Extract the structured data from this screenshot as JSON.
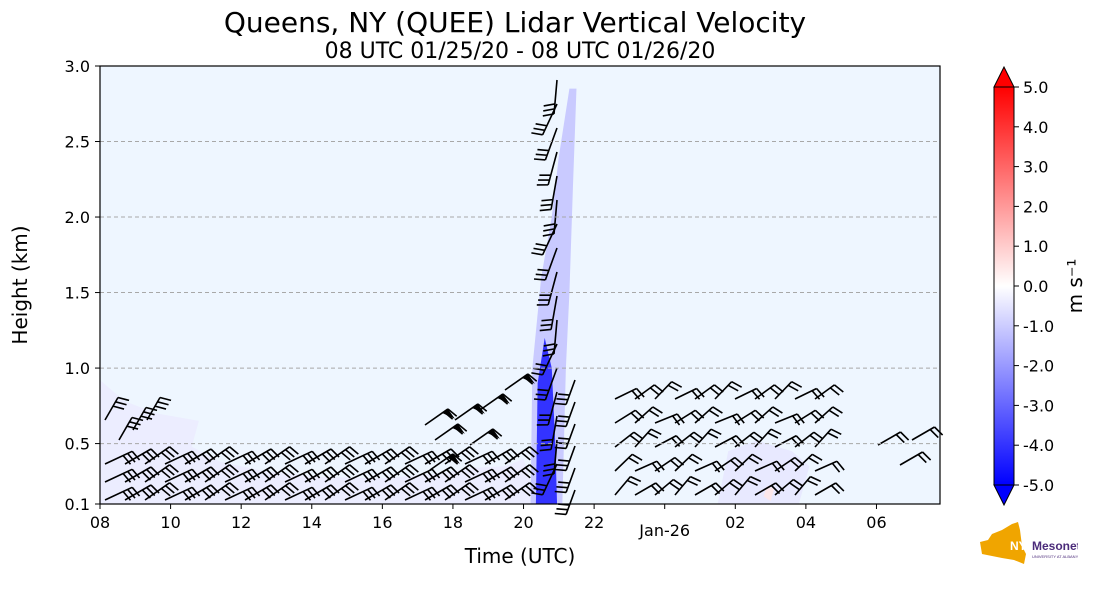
{
  "chart_data": {
    "type": "heatmap",
    "title": "Queens, NY (QUEE) Lidar Vertical Velocity",
    "subtitle": "08 UTC 01/25/20 - 08 UTC 01/26/20",
    "xlabel": "Time (UTC)",
    "ylabel": "Height (km)",
    "x_tick_labels": [
      "08",
      "10",
      "12",
      "14",
      "16",
      "18",
      "20",
      "22",
      "Jan-26",
      "02",
      "04",
      "06"
    ],
    "x_ticks_hours": [
      8,
      10,
      12,
      14,
      16,
      18,
      20,
      22,
      24,
      26,
      28,
      30
    ],
    "xlim_hours": [
      8,
      31.8
    ],
    "y_tick_labels": [
      "0.1",
      "0.5",
      "1.0",
      "1.5",
      "2.0",
      "2.5",
      "3.0"
    ],
    "y_ticks": [
      0.1,
      0.5,
      1.0,
      1.5,
      2.0,
      2.5,
      3.0
    ],
    "ylim": [
      0.1,
      3.0
    ],
    "grid": "horizontal dashed",
    "colorbar": {
      "label": "m s⁻¹",
      "tick_labels": [
        "5.0",
        "4.0",
        "3.0",
        "2.0",
        "1.0",
        "0.0",
        "-1.0",
        "-2.0",
        "-3.0",
        "-4.0",
        "-5.0"
      ],
      "range": [
        -5.0,
        5.0
      ],
      "extend": "both",
      "colormap": "blue-white-red",
      "colors": {
        "min": "#0000ff",
        "mid": "#ffffff",
        "max": "#ff0000"
      }
    },
    "background_value_color": "#eef6ff",
    "fields": [
      {
        "name": "boundary-layer downdraft",
        "poly": [
          [
            8,
            0.1
          ],
          [
            8,
            0.92
          ],
          [
            8.7,
            0.78
          ],
          [
            9.6,
            0.7
          ],
          [
            10.8,
            0.65
          ],
          [
            10.6,
            0.48
          ],
          [
            11.4,
            0.38
          ],
          [
            12.6,
            0.32
          ],
          [
            14.2,
            0.28
          ],
          [
            16,
            0.27
          ],
          [
            17.5,
            0.3
          ],
          [
            18.6,
            0.34
          ],
          [
            19.5,
            0.35
          ],
          [
            20,
            0.4
          ],
          [
            20.4,
            0.1
          ]
        ],
        "value": -0.4
      },
      {
        "name": "fall streak",
        "poly": [
          [
            20.2,
            0.1
          ],
          [
            20.25,
            1.0
          ],
          [
            20.5,
            1.6
          ],
          [
            20.8,
            2.0
          ],
          [
            21.0,
            2.4
          ],
          [
            21.3,
            2.85
          ],
          [
            21.5,
            2.85
          ],
          [
            21.4,
            2.2
          ],
          [
            21.3,
            1.5
          ],
          [
            21.2,
            1.0
          ],
          [
            21.1,
            0.1
          ]
        ],
        "value": -1.2
      },
      {
        "name": "fall streak core",
        "poly": [
          [
            20.35,
            0.1
          ],
          [
            20.4,
            0.9
          ],
          [
            20.6,
            1.2
          ],
          [
            20.8,
            1.0
          ],
          [
            20.9,
            0.5
          ],
          [
            20.95,
            0.1
          ]
        ],
        "value": -4.5
      },
      {
        "name": "early morning",
        "poly": [
          [
            25.5,
            0.1
          ],
          [
            25.8,
            0.45
          ],
          [
            26.6,
            0.52
          ],
          [
            27.6,
            0.45
          ],
          [
            28.1,
            0.35
          ],
          [
            27.8,
            0.1
          ]
        ],
        "value": -0.5
      },
      {
        "name": "updraft",
        "poly": [
          [
            26.8,
            0.15
          ],
          [
            26.9,
            0.22
          ],
          [
            27.1,
            0.2
          ],
          [
            27.0,
            0.12
          ]
        ],
        "value": 0.5
      }
    ]
  }
}
